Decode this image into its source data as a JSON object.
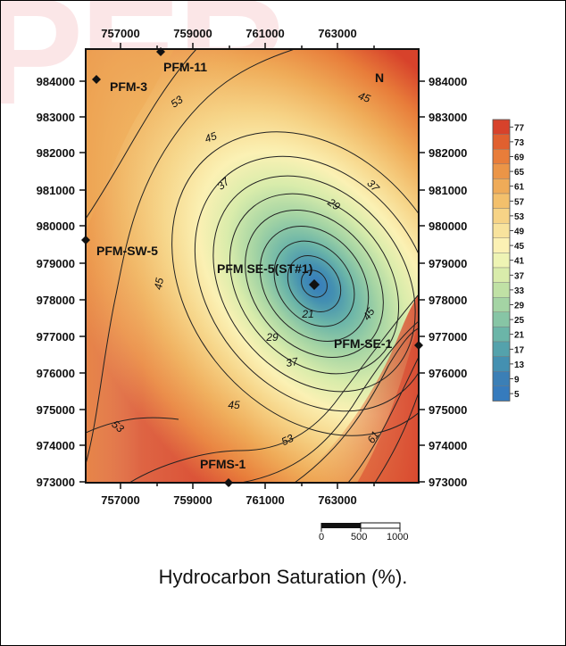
{
  "watermark": "PER",
  "map": {
    "x_ticks": [
      "757000",
      "759000",
      "761000",
      "763000"
    ],
    "y_ticks": [
      "984000",
      "983000",
      "982000",
      "981000",
      "980000",
      "979000",
      "978000",
      "977000",
      "976000",
      "975000",
      "974000",
      "973000"
    ],
    "north_label": "N",
    "wells": {
      "pfm3": "PFM-3",
      "pfm11": "PFM-11",
      "pfmsw5": "PFM-SW-5",
      "pfmse5": "PFM SE-5(ST#1)",
      "pfmse1": "PFM-SE-1",
      "pfms1": "PFMS-1"
    },
    "contour_labels": {
      "c53a": "53",
      "c45a": "45",
      "c45b": "45",
      "c37a": "37",
      "c37b": "37",
      "c29a": "29",
      "c45c": "45",
      "c21": "21",
      "c29b": "29",
      "c37c": "37",
      "c45d": "45",
      "c45e": "45",
      "c53b": "53",
      "c53c": "53",
      "c61": "61"
    }
  },
  "legend": {
    "values": [
      "77",
      "73",
      "69",
      "65",
      "61",
      "57",
      "53",
      "49",
      "45",
      "41",
      "37",
      "33",
      "29",
      "25",
      "21",
      "17",
      "13",
      "9",
      "5"
    ],
    "colors": [
      "#d7422b",
      "#e0602f",
      "#e87d3a",
      "#eb9547",
      "#efab58",
      "#f3c06c",
      "#f6d386",
      "#f8e39d",
      "#fbf1b4",
      "#eef4b4",
      "#d9ecab",
      "#c0e1a5",
      "#a4d4a4",
      "#87c5a5",
      "#6bb5a8",
      "#54a2ac",
      "#4490b1",
      "#3b7fb6",
      "#367bbd"
    ]
  },
  "scale_bar": {
    "labels": [
      "0",
      "500",
      "1000"
    ]
  },
  "caption": "Hydrocarbon Saturation (%)."
}
